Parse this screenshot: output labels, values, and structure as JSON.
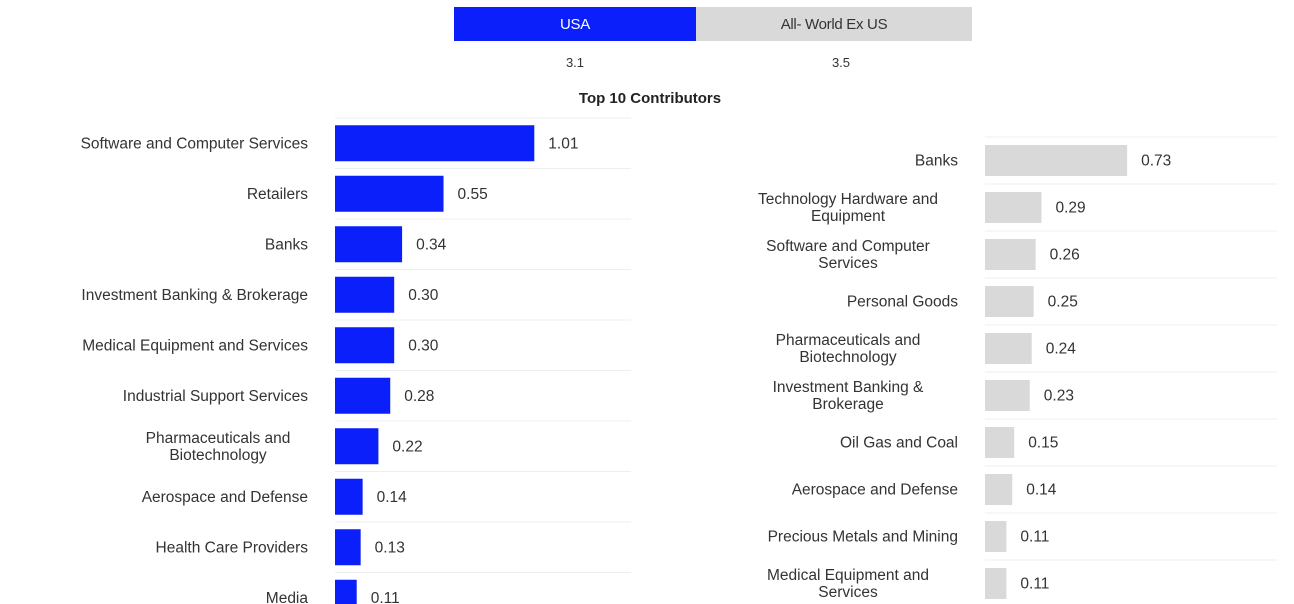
{
  "header": {
    "usa_label": "USA",
    "world_label": "All- World Ex US",
    "usa_value": "3.1",
    "world_value": "3.5",
    "usa_color": "#0a1ffa",
    "world_color": "#d9d9d9"
  },
  "chart_data": [
    {
      "type": "bar",
      "orientation": "horizontal",
      "title": "Top 10 Contributors",
      "color": "#0a1ffa",
      "categories": [
        "Software and Computer Services",
        "Retailers",
        "Banks",
        "Investment Banking & Brokerage",
        "Medical Equipment and Services",
        "Industrial Support Services",
        "Pharmaceuticals and Biotechnology",
        "Aerospace and Defense",
        "Health Care Providers",
        "Media"
      ],
      "values": [
        1.01,
        0.55,
        0.34,
        0.3,
        0.3,
        0.28,
        0.22,
        0.14,
        0.13,
        0.11
      ],
      "value_labels": [
        "1.01",
        "0.55",
        "0.34",
        "0.30",
        "0.30",
        "0.28",
        "0.22",
        "0.14",
        "0.13",
        "0.11"
      ],
      "xlim": [
        0,
        1.5
      ],
      "grid": true
    },
    {
      "type": "bar",
      "orientation": "horizontal",
      "color": "#d9d9d9",
      "categories": [
        "Banks",
        "Technology Hardware and Equipment",
        "Software and Computer Services",
        "Personal Goods",
        "Pharmaceuticals and Biotechnology",
        "Investment Banking & Brokerage",
        "Oil Gas and Coal",
        "Aerospace and Defense",
        "Precious Metals and Mining",
        "Medical Equipment and Services"
      ],
      "values": [
        0.73,
        0.29,
        0.26,
        0.25,
        0.24,
        0.23,
        0.15,
        0.14,
        0.11,
        0.11
      ],
      "value_labels": [
        "0.73",
        "0.29",
        "0.26",
        "0.25",
        "0.24",
        "0.23",
        "0.15",
        "0.14",
        "0.11",
        "0.11"
      ],
      "xlim": [
        0,
        1.5
      ],
      "grid": true
    }
  ]
}
